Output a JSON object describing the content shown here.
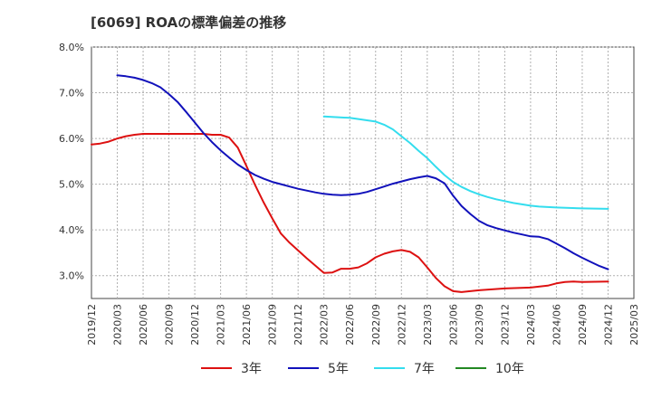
{
  "title": "[6069]  ROAの標準偏差の推移",
  "colors": {
    "s3": "#dd1111",
    "s5": "#1111bb",
    "s7": "#33ddee",
    "s10": "#228822",
    "grid": "#b0b0b0",
    "axis": "#444444"
  },
  "chart_data": {
    "type": "line",
    "title": "[6069]  ROAの標準偏差の推移",
    "xlabel": "",
    "ylabel": "",
    "ylim": [
      2.5,
      8.0
    ],
    "grid": true,
    "legend_position": "bottom",
    "y_ticks": [
      "3.0%",
      "4.0%",
      "5.0%",
      "6.0%",
      "7.0%",
      "8.0%"
    ],
    "x_ticks": [
      "2019/12",
      "2020/03",
      "2020/06",
      "2020/09",
      "2020/12",
      "2021/03",
      "2021/06",
      "2021/09",
      "2021/12",
      "2022/03",
      "2022/06",
      "2022/09",
      "2022/12",
      "2023/03",
      "2023/06",
      "2023/09",
      "2023/12",
      "2024/03",
      "2024/06",
      "2024/09",
      "2024/12",
      "2025/03"
    ],
    "series": [
      {
        "name": "3年",
        "color": "#dd1111",
        "points": [
          [
            "2019/12",
            5.87
          ],
          [
            "2020/01",
            5.89
          ],
          [
            "2020/02",
            5.93
          ],
          [
            "2020/03",
            6.0
          ],
          [
            "2020/04",
            6.05
          ],
          [
            "2020/05",
            6.08
          ],
          [
            "2020/06",
            6.1
          ],
          [
            "2020/09",
            6.1
          ],
          [
            "2020/12",
            6.1
          ],
          [
            "2021/01",
            6.1
          ],
          [
            "2021/02",
            6.08
          ],
          [
            "2021/03",
            6.08
          ],
          [
            "2021/04",
            6.02
          ],
          [
            "2021/05",
            5.8
          ],
          [
            "2021/06",
            5.4
          ],
          [
            "2021/07",
            4.98
          ],
          [
            "2021/08",
            4.6
          ],
          [
            "2021/09",
            4.25
          ],
          [
            "2021/10",
            3.92
          ],
          [
            "2021/11",
            3.72
          ],
          [
            "2021/12",
            3.55
          ],
          [
            "2022/01",
            3.38
          ],
          [
            "2022/02",
            3.22
          ],
          [
            "2022/03",
            3.06
          ],
          [
            "2022/04",
            3.07
          ],
          [
            "2022/05",
            3.15
          ],
          [
            "2022/06",
            3.15
          ],
          [
            "2022/07",
            3.18
          ],
          [
            "2022/08",
            3.27
          ],
          [
            "2022/09",
            3.4
          ],
          [
            "2022/10",
            3.48
          ],
          [
            "2022/11",
            3.53
          ],
          [
            "2022/12",
            3.56
          ],
          [
            "2023/01",
            3.52
          ],
          [
            "2023/02",
            3.4
          ],
          [
            "2023/03",
            3.18
          ],
          [
            "2023/04",
            2.95
          ],
          [
            "2023/05",
            2.77
          ],
          [
            "2023/06",
            2.66
          ],
          [
            "2023/07",
            2.64
          ],
          [
            "2023/08",
            2.66
          ],
          [
            "2023/09",
            2.68
          ],
          [
            "2023/12",
            2.72
          ],
          [
            "2024/03",
            2.74
          ],
          [
            "2024/05",
            2.78
          ],
          [
            "2024/06",
            2.83
          ],
          [
            "2024/07",
            2.86
          ],
          [
            "2024/08",
            2.87
          ],
          [
            "2024/09",
            2.86
          ],
          [
            "2024/12",
            2.87
          ]
        ]
      },
      {
        "name": "5年",
        "color": "#1111bb",
        "points": [
          [
            "2020/03",
            7.38
          ],
          [
            "2020/04",
            7.36
          ],
          [
            "2020/05",
            7.33
          ],
          [
            "2020/06",
            7.28
          ],
          [
            "2020/07",
            7.21
          ],
          [
            "2020/08",
            7.12
          ],
          [
            "2020/09",
            6.97
          ],
          [
            "2020/10",
            6.8
          ],
          [
            "2020/11",
            6.58
          ],
          [
            "2020/12",
            6.35
          ],
          [
            "2021/01",
            6.12
          ],
          [
            "2021/02",
            5.92
          ],
          [
            "2021/03",
            5.74
          ],
          [
            "2021/04",
            5.58
          ],
          [
            "2021/05",
            5.43
          ],
          [
            "2021/06",
            5.31
          ],
          [
            "2021/07",
            5.2
          ],
          [
            "2021/08",
            5.12
          ],
          [
            "2021/09",
            5.05
          ],
          [
            "2021/10",
            5.0
          ],
          [
            "2021/11",
            4.95
          ],
          [
            "2021/12",
            4.9
          ],
          [
            "2022/01",
            4.86
          ],
          [
            "2022/02",
            4.82
          ],
          [
            "2022/03",
            4.79
          ],
          [
            "2022/04",
            4.77
          ],
          [
            "2022/05",
            4.76
          ],
          [
            "2022/06",
            4.77
          ],
          [
            "2022/07",
            4.79
          ],
          [
            "2022/08",
            4.83
          ],
          [
            "2022/09",
            4.89
          ],
          [
            "2022/10",
            4.95
          ],
          [
            "2022/11",
            5.01
          ],
          [
            "2022/12",
            5.06
          ],
          [
            "2023/01",
            5.11
          ],
          [
            "2023/02",
            5.15
          ],
          [
            "2023/03",
            5.18
          ],
          [
            "2023/04",
            5.13
          ],
          [
            "2023/05",
            5.02
          ],
          [
            "2023/06",
            4.75
          ],
          [
            "2023/07",
            4.52
          ],
          [
            "2023/08",
            4.35
          ],
          [
            "2023/09",
            4.2
          ],
          [
            "2023/10",
            4.1
          ],
          [
            "2023/11",
            4.04
          ],
          [
            "2023/12",
            3.99
          ],
          [
            "2024/01",
            3.94
          ],
          [
            "2024/02",
            3.9
          ],
          [
            "2024/03",
            3.86
          ],
          [
            "2024/04",
            3.85
          ],
          [
            "2024/05",
            3.8
          ],
          [
            "2024/06",
            3.7
          ],
          [
            "2024/07",
            3.6
          ],
          [
            "2024/08",
            3.49
          ],
          [
            "2024/09",
            3.39
          ],
          [
            "2024/10",
            3.3
          ],
          [
            "2024/11",
            3.21
          ],
          [
            "2024/12",
            3.14
          ]
        ]
      },
      {
        "name": "7年",
        "color": "#33ddee",
        "points": [
          [
            "2022/03",
            6.48
          ],
          [
            "2022/06",
            6.45
          ],
          [
            "2022/09",
            6.37
          ],
          [
            "2022/10",
            6.3
          ],
          [
            "2022/11",
            6.2
          ],
          [
            "2022/12",
            6.05
          ],
          [
            "2023/01",
            5.9
          ],
          [
            "2023/02",
            5.73
          ],
          [
            "2023/03",
            5.57
          ],
          [
            "2023/04",
            5.38
          ],
          [
            "2023/05",
            5.2
          ],
          [
            "2023/06",
            5.05
          ],
          [
            "2023/07",
            4.94
          ],
          [
            "2023/08",
            4.85
          ],
          [
            "2023/09",
            4.78
          ],
          [
            "2023/10",
            4.72
          ],
          [
            "2023/11",
            4.67
          ],
          [
            "2023/12",
            4.63
          ],
          [
            "2024/01",
            4.59
          ],
          [
            "2024/02",
            4.56
          ],
          [
            "2024/03",
            4.53
          ],
          [
            "2024/04",
            4.51
          ],
          [
            "2024/05",
            4.5
          ],
          [
            "2024/06",
            4.49
          ],
          [
            "2024/09",
            4.47
          ],
          [
            "2024/12",
            4.46
          ]
        ]
      },
      {
        "name": "10年",
        "color": "#228822",
        "points": []
      }
    ]
  }
}
